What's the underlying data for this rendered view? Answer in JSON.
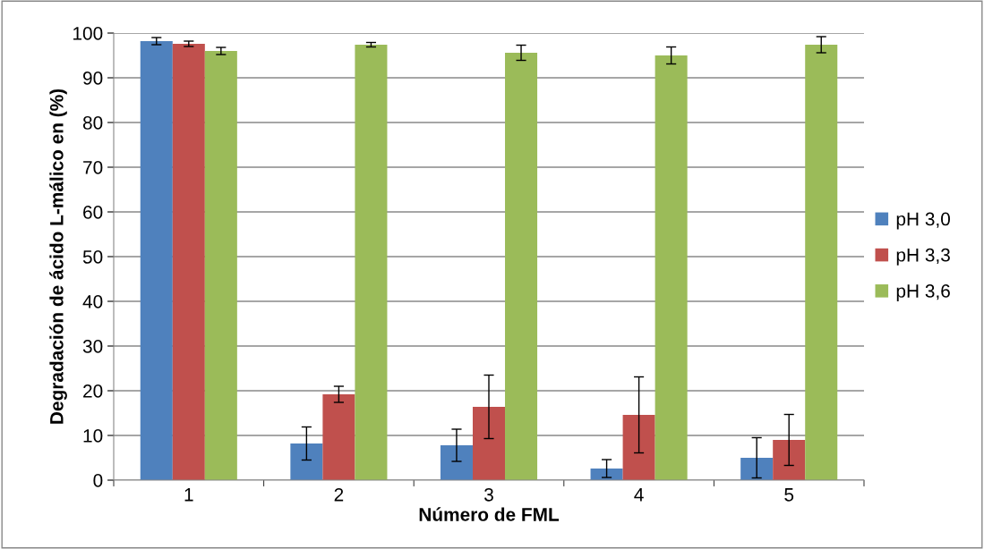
{
  "chart_data": {
    "type": "bar",
    "xlabel": "Número de FML",
    "ylabel": "Degradación de ácido L-málico en (%)",
    "categories": [
      "1",
      "2",
      "3",
      "4",
      "5"
    ],
    "series": [
      {
        "name": "pH 3,0",
        "color": "#4f81bd",
        "values": [
          98.2,
          8.2,
          7.8,
          2.6,
          5.0
        ],
        "errors": [
          0.8,
          3.7,
          3.6,
          2.0,
          4.5
        ]
      },
      {
        "name": "pH 3,3",
        "color": "#c0504d",
        "values": [
          97.6,
          19.2,
          16.4,
          14.6,
          9.0
        ],
        "errors": [
          0.6,
          1.8,
          7.1,
          8.5,
          5.7
        ]
      },
      {
        "name": "pH 3,6",
        "color": "#9bbb59",
        "values": [
          96.0,
          97.4,
          95.6,
          95.0,
          97.4
        ],
        "errors": [
          0.8,
          0.5,
          1.7,
          1.9,
          1.8
        ]
      }
    ],
    "ylim": [
      0,
      100
    ],
    "yticks": [
      0,
      10,
      20,
      30,
      40,
      50,
      60,
      70,
      80,
      90,
      100
    ],
    "grid": "y",
    "legend": "right"
  }
}
